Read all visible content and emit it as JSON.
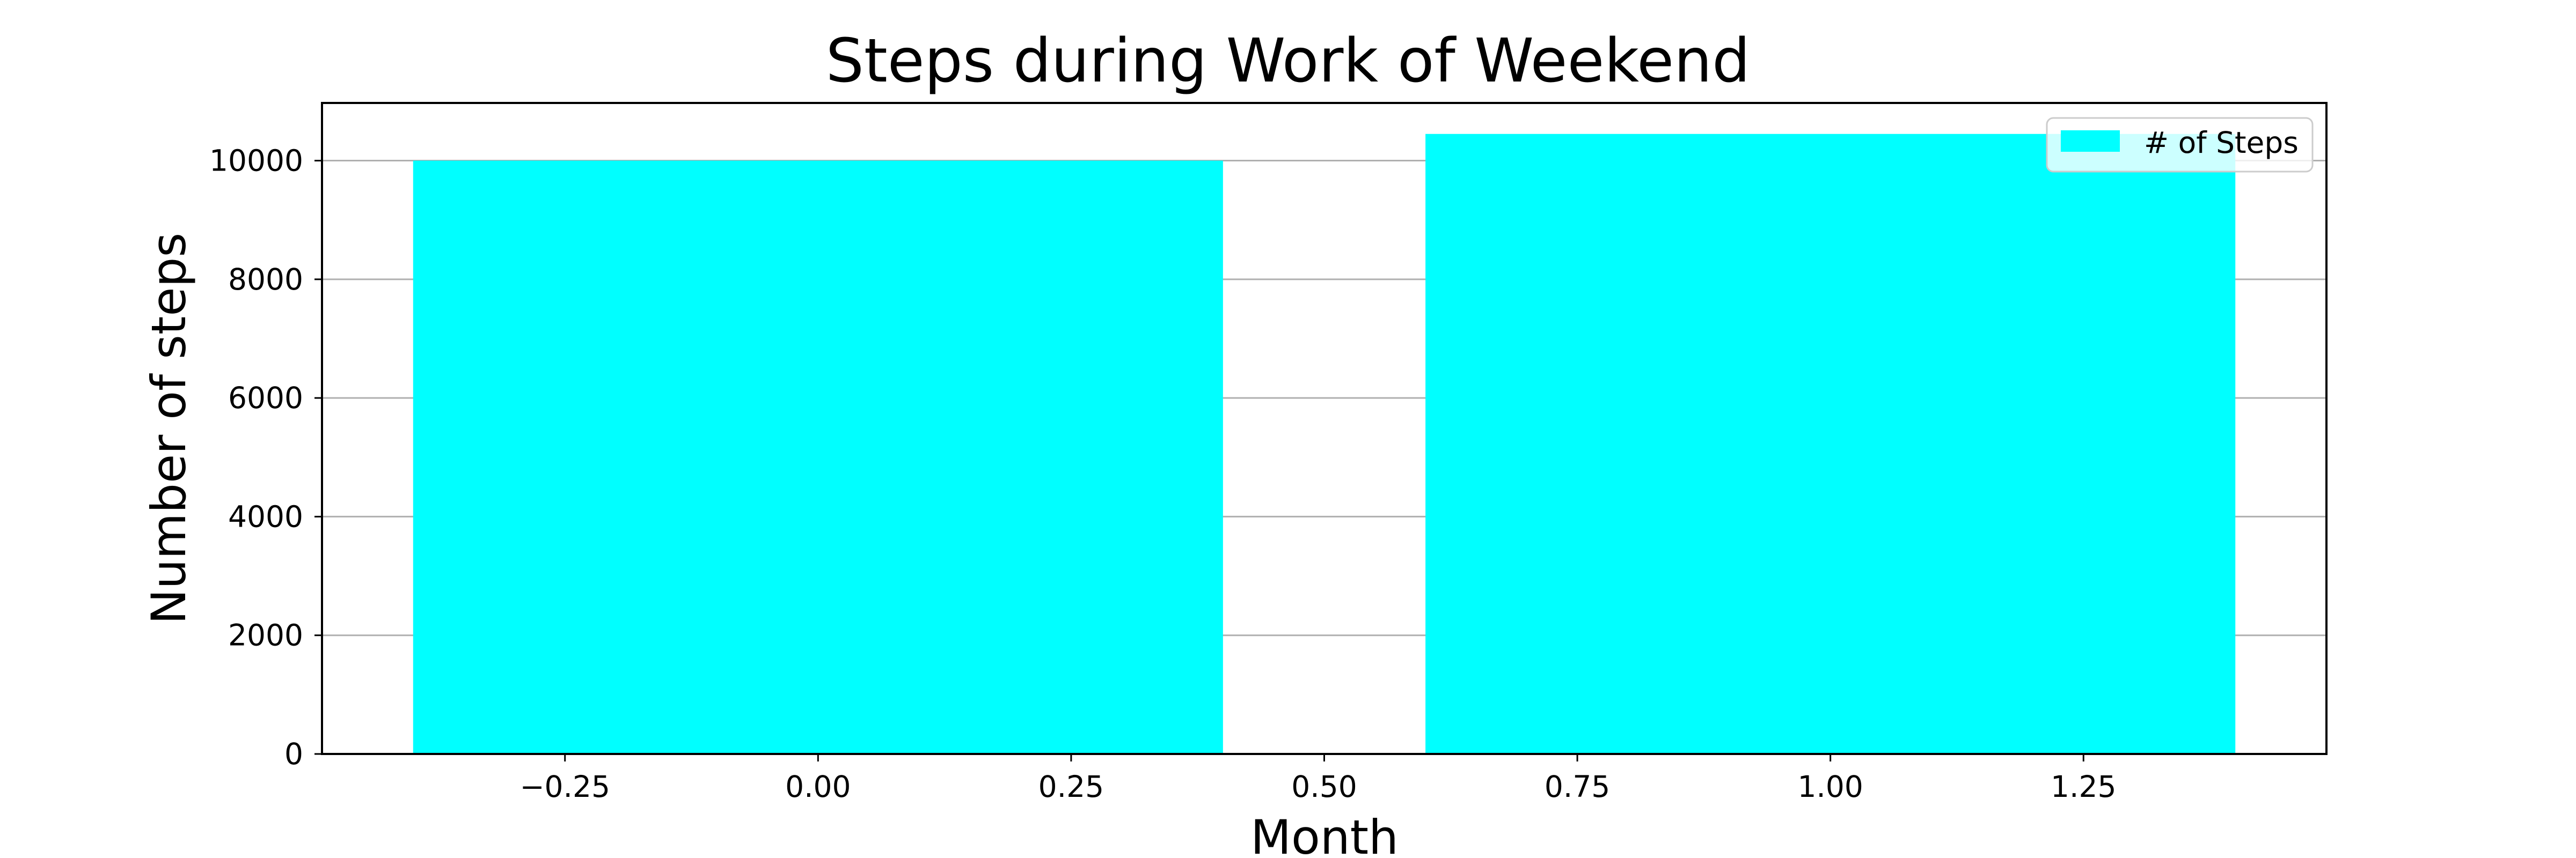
{
  "chart_data": {
    "type": "bar",
    "title": "Steps during Work of Weekend",
    "xlabel": "Month",
    "ylabel": "Number of steps",
    "x": [
      0,
      1
    ],
    "values": [
      10000,
      10450
    ],
    "bar_width": 0.8,
    "xlim": [
      -0.49,
      1.49
    ],
    "ylim": [
      0,
      10972
    ],
    "xticks": [
      -0.25,
      0.0,
      0.25,
      0.5,
      0.75,
      1.0,
      1.25
    ],
    "xtick_labels": [
      "−0.25",
      "0.00",
      "0.25",
      "0.50",
      "0.75",
      "1.00",
      "1.25"
    ],
    "yticks": [
      0,
      2000,
      4000,
      6000,
      8000,
      10000
    ],
    "ytick_labels": [
      "0",
      "2000",
      "4000",
      "6000",
      "8000",
      "10000"
    ],
    "grid": "y",
    "legend": {
      "placement": "top-right",
      "entries": [
        {
          "name": "# of Steps",
          "color": "#00ffff"
        }
      ]
    },
    "bar_color": "#00ffff",
    "grid_color": "#b0b0b0"
  }
}
